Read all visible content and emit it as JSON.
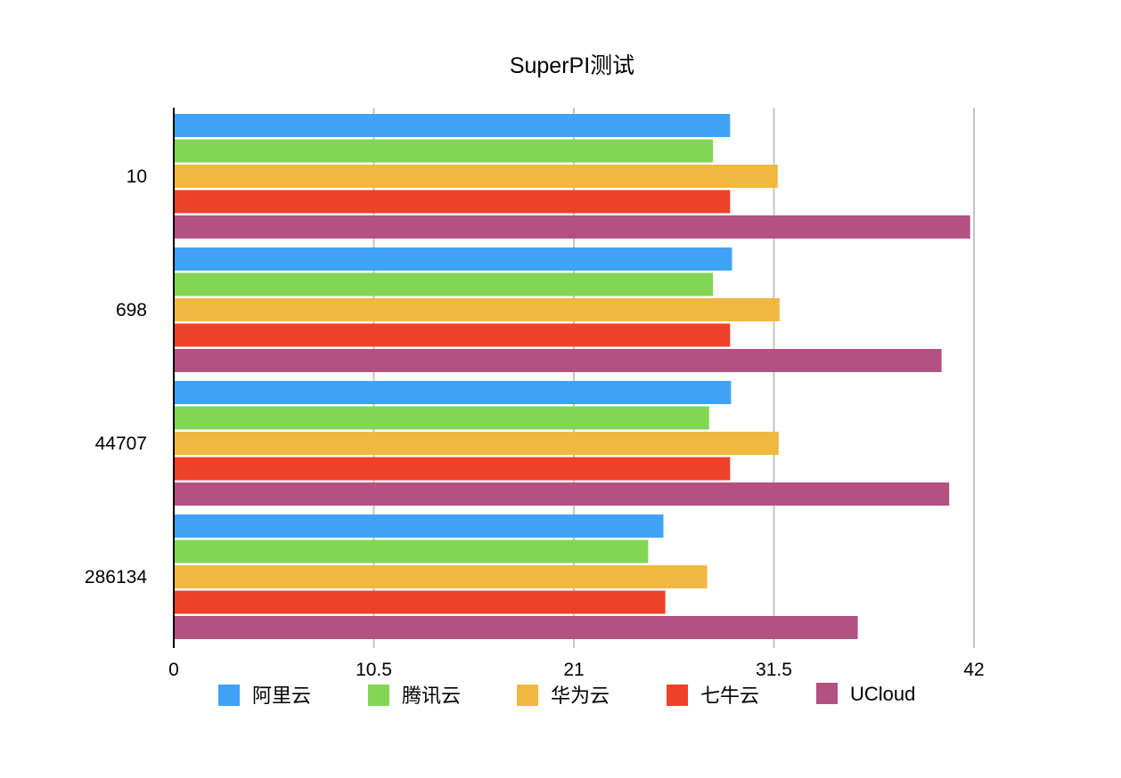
{
  "chart_data": {
    "type": "bar",
    "orientation": "horizontal",
    "title": "SuperPI测试",
    "xlabel": "",
    "ylabel": "",
    "xlim": [
      0,
      42
    ],
    "xticks": [
      "0",
      "10.5",
      "21",
      "31.5",
      "42"
    ],
    "categories": [
      "10",
      "698",
      "44707",
      "286134"
    ],
    "grid": "vertical lines",
    "legend_position": "bottom",
    "series": [
      {
        "name": "阿里云",
        "color": "#3fa2f7",
        "values": [
          29.2,
          29.3,
          29.25,
          25.7
        ]
      },
      {
        "name": "腾讯云",
        "color": "#82d654",
        "values": [
          28.3,
          28.3,
          28.1,
          24.9
        ]
      },
      {
        "name": "华为云",
        "color": "#f0b840",
        "values": [
          31.7,
          31.8,
          31.75,
          28.0
        ]
      },
      {
        "name": "七牛云",
        "color": "#ee4129",
        "values": [
          29.2,
          29.2,
          29.2,
          25.8
        ]
      },
      {
        "name": "UCloud",
        "color": "#b35180",
        "values": [
          41.8,
          40.3,
          40.7,
          35.9
        ]
      }
    ]
  }
}
